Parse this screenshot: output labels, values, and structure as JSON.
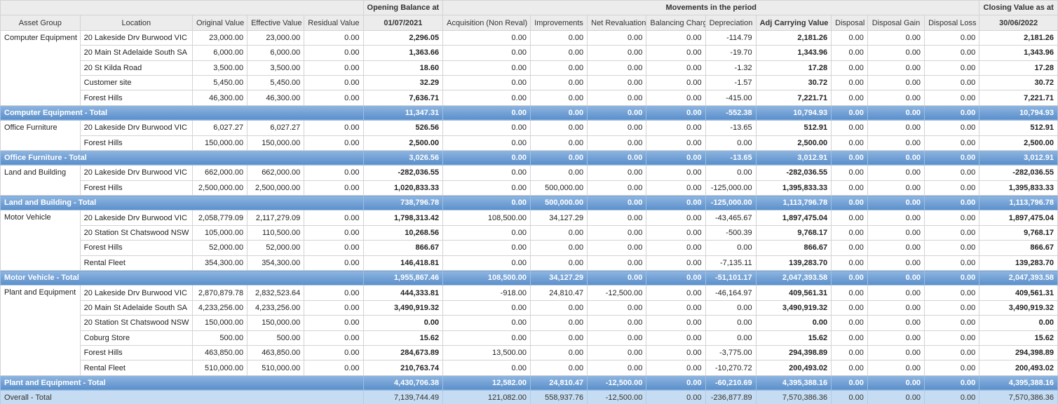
{
  "headers": {
    "opening_top": "Opening Balance at",
    "movements_top": "Movements in the period",
    "closing_top": "Closing Value as at",
    "columns": [
      "Asset Group",
      "Location",
      "Original Value",
      "Effective Value",
      "Residual Value",
      "01/07/2021",
      "Acquisition (Non Reval)",
      "Improvements",
      "Net Revaluation",
      "Balancing Charge",
      "Depreciation",
      "Adj Carrying Value",
      "Disposal",
      "Disposal Gain",
      "Disposal Loss",
      "30/06/2022"
    ]
  },
  "groups": [
    {
      "name": "Computer Equipment",
      "rows": [
        [
          "20 Lakeside Drv Burwood VIC",
          "23,000.00",
          "23,000.00",
          "0.00",
          "2,296.05",
          "0.00",
          "0.00",
          "0.00",
          "0.00",
          "-114.79",
          "2,181.26",
          "0.00",
          "0.00",
          "0.00",
          "2,181.26"
        ],
        [
          "20 Main St Adelaide South SA",
          "6,000.00",
          "6,000.00",
          "0.00",
          "1,363.66",
          "0.00",
          "0.00",
          "0.00",
          "0.00",
          "-19.70",
          "1,343.96",
          "0.00",
          "0.00",
          "0.00",
          "1,343.96"
        ],
        [
          "20 St Kilda Road",
          "3,500.00",
          "3,500.00",
          "0.00",
          "18.60",
          "0.00",
          "0.00",
          "0.00",
          "0.00",
          "-1.32",
          "17.28",
          "0.00",
          "0.00",
          "0.00",
          "17.28"
        ],
        [
          "Customer site",
          "5,450.00",
          "5,450.00",
          "0.00",
          "32.29",
          "0.00",
          "0.00",
          "0.00",
          "0.00",
          "-1.57",
          "30.72",
          "0.00",
          "0.00",
          "0.00",
          "30.72"
        ],
        [
          "Forest Hills",
          "46,300.00",
          "46,300.00",
          "0.00",
          "7,636.71",
          "0.00",
          "0.00",
          "0.00",
          "0.00",
          "-415.00",
          "7,221.71",
          "0.00",
          "0.00",
          "0.00",
          "7,221.71"
        ]
      ],
      "total_label": "Computer Equipment - Total",
      "total": [
        "11,347.31",
        "0.00",
        "0.00",
        "0.00",
        "0.00",
        "-552.38",
        "10,794.93",
        "0.00",
        "0.00",
        "0.00",
        "10,794.93"
      ]
    },
    {
      "name": "Office Furniture",
      "rows": [
        [
          "20 Lakeside Drv Burwood VIC",
          "6,027.27",
          "6,027.27",
          "0.00",
          "526.56",
          "0.00",
          "0.00",
          "0.00",
          "0.00",
          "-13.65",
          "512.91",
          "0.00",
          "0.00",
          "0.00",
          "512.91"
        ],
        [
          "Forest Hills",
          "150,000.00",
          "150,000.00",
          "0.00",
          "2,500.00",
          "0.00",
          "0.00",
          "0.00",
          "0.00",
          "0.00",
          "2,500.00",
          "0.00",
          "0.00",
          "0.00",
          "2,500.00"
        ]
      ],
      "total_label": "Office Furniture - Total",
      "total": [
        "3,026.56",
        "0.00",
        "0.00",
        "0.00",
        "0.00",
        "-13.65",
        "3,012.91",
        "0.00",
        "0.00",
        "0.00",
        "3,012.91"
      ]
    },
    {
      "name": "Land and Building",
      "rows": [
        [
          "20 Lakeside Drv Burwood VIC",
          "662,000.00",
          "662,000.00",
          "0.00",
          "-282,036.55",
          "0.00",
          "0.00",
          "0.00",
          "0.00",
          "0.00",
          "-282,036.55",
          "0.00",
          "0.00",
          "0.00",
          "-282,036.55"
        ],
        [
          "Forest Hills",
          "2,500,000.00",
          "2,500,000.00",
          "0.00",
          "1,020,833.33",
          "0.00",
          "500,000.00",
          "0.00",
          "0.00",
          "-125,000.00",
          "1,395,833.33",
          "0.00",
          "0.00",
          "0.00",
          "1,395,833.33"
        ]
      ],
      "total_label": "Land and Building - Total",
      "total": [
        "738,796.78",
        "0.00",
        "500,000.00",
        "0.00",
        "0.00",
        "-125,000.00",
        "1,113,796.78",
        "0.00",
        "0.00",
        "0.00",
        "1,113,796.78"
      ]
    },
    {
      "name": "Motor Vehicle",
      "rows": [
        [
          "20 Lakeside Drv Burwood VIC",
          "2,058,779.09",
          "2,117,279.09",
          "0.00",
          "1,798,313.42",
          "108,500.00",
          "34,127.29",
          "0.00",
          "0.00",
          "-43,465.67",
          "1,897,475.04",
          "0.00",
          "0.00",
          "0.00",
          "1,897,475.04"
        ],
        [
          "20 Station St Chatswood NSW",
          "105,000.00",
          "110,500.00",
          "0.00",
          "10,268.56",
          "0.00",
          "0.00",
          "0.00",
          "0.00",
          "-500.39",
          "9,768.17",
          "0.00",
          "0.00",
          "0.00",
          "9,768.17"
        ],
        [
          "Forest Hills",
          "52,000.00",
          "52,000.00",
          "0.00",
          "866.67",
          "0.00",
          "0.00",
          "0.00",
          "0.00",
          "0.00",
          "866.67",
          "0.00",
          "0.00",
          "0.00",
          "866.67"
        ],
        [
          "Rental Fleet",
          "354,300.00",
          "354,300.00",
          "0.00",
          "146,418.81",
          "0.00",
          "0.00",
          "0.00",
          "0.00",
          "-7,135.11",
          "139,283.70",
          "0.00",
          "0.00",
          "0.00",
          "139,283.70"
        ]
      ],
      "total_label": "Motor Vehicle - Total",
      "total": [
        "1,955,867.46",
        "108,500.00",
        "34,127.29",
        "0.00",
        "0.00",
        "-51,101.17",
        "2,047,393.58",
        "0.00",
        "0.00",
        "0.00",
        "2,047,393.58"
      ]
    },
    {
      "name": "Plant and Equipment",
      "rows": [
        [
          "20 Lakeside Drv Burwood VIC",
          "2,870,879.78",
          "2,832,523.64",
          "0.00",
          "444,333.81",
          "-918.00",
          "24,810.47",
          "-12,500.00",
          "0.00",
          "-46,164.97",
          "409,561.31",
          "0.00",
          "0.00",
          "0.00",
          "409,561.31"
        ],
        [
          "20 Main St Adelaide South SA",
          "4,233,256.00",
          "4,233,256.00",
          "0.00",
          "3,490,919.32",
          "0.00",
          "0.00",
          "0.00",
          "0.00",
          "0.00",
          "3,490,919.32",
          "0.00",
          "0.00",
          "0.00",
          "3,490,919.32"
        ],
        [
          "20 Station St Chatswood NSW",
          "150,000.00",
          "150,000.00",
          "0.00",
          "0.00",
          "0.00",
          "0.00",
          "0.00",
          "0.00",
          "0.00",
          "0.00",
          "0.00",
          "0.00",
          "0.00",
          "0.00"
        ],
        [
          "Coburg Store",
          "500.00",
          "500.00",
          "0.00",
          "15.62",
          "0.00",
          "0.00",
          "0.00",
          "0.00",
          "0.00",
          "15.62",
          "0.00",
          "0.00",
          "0.00",
          "15.62"
        ],
        [
          "Forest Hills",
          "463,850.00",
          "463,850.00",
          "0.00",
          "284,673.89",
          "13,500.00",
          "0.00",
          "0.00",
          "0.00",
          "-3,775.00",
          "294,398.89",
          "0.00",
          "0.00",
          "0.00",
          "294,398.89"
        ],
        [
          "Rental Fleet",
          "510,000.00",
          "510,000.00",
          "0.00",
          "210,763.74",
          "0.00",
          "0.00",
          "0.00",
          "0.00",
          "-10,270.72",
          "200,493.02",
          "0.00",
          "0.00",
          "0.00",
          "200,493.02"
        ]
      ],
      "total_label": "Plant and Equipment - Total",
      "total": [
        "4,430,706.38",
        "12,582.00",
        "24,810.47",
        "-12,500.00",
        "0.00",
        "-60,210.69",
        "4,395,388.16",
        "0.00",
        "0.00",
        "0.00",
        "4,395,388.16"
      ]
    }
  ],
  "overall": {
    "label": "Overall - Total",
    "values": [
      "7,139,744.49",
      "121,082.00",
      "558,937.76",
      "-12,500.00",
      "0.00",
      "-236,877.89",
      "7,570,386.36",
      "0.00",
      "0.00",
      "0.00",
      "7,570,386.36"
    ]
  }
}
